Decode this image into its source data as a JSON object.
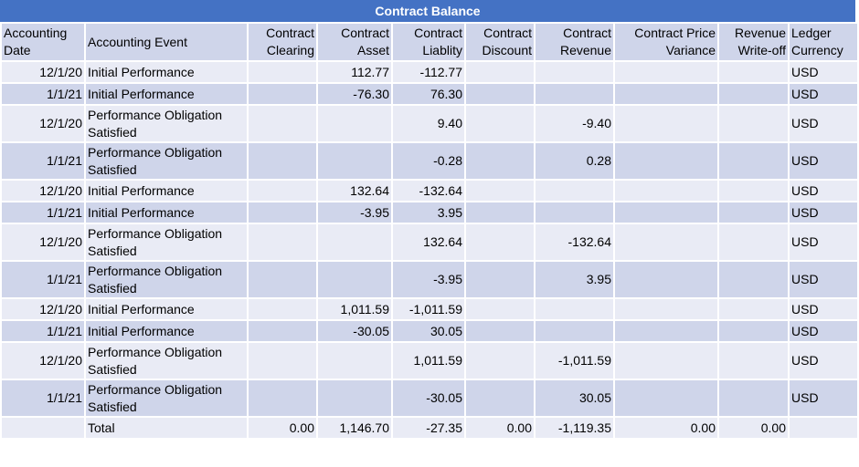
{
  "title": "Contract Balance",
  "headers": [
    "Accounting Date",
    "Accounting Event",
    "Contract Clearing",
    "Contract Asset",
    "Contract Liablity",
    "Contract Discount",
    "Contract Revenue",
    "Contract Price Variance",
    "Revenue Write-off",
    "Ledger Currency"
  ],
  "rows": [
    {
      "date": "12/1/20",
      "event": "Initial Performance",
      "clearing": "",
      "asset": "112.77",
      "liability": "-112.77",
      "discount": "",
      "revenue": "",
      "variance": "",
      "writeoff": "",
      "currency": "USD"
    },
    {
      "date": "1/1/21",
      "event": "Initial Performance",
      "clearing": "",
      "asset": "-76.30",
      "liability": "76.30",
      "discount": "",
      "revenue": "",
      "variance": "",
      "writeoff": "",
      "currency": "USD"
    },
    {
      "date": "12/1/20",
      "event": "Performance Obligation Satisfied",
      "clearing": "",
      "asset": "",
      "liability": "9.40",
      "discount": "",
      "revenue": "-9.40",
      "variance": "",
      "writeoff": "",
      "currency": "USD"
    },
    {
      "date": "1/1/21",
      "event": "Performance Obligation Satisfied",
      "clearing": "",
      "asset": "",
      "liability": "-0.28",
      "discount": "",
      "revenue": "0.28",
      "variance": "",
      "writeoff": "",
      "currency": "USD"
    },
    {
      "date": "12/1/20",
      "event": "Initial Performance",
      "clearing": "",
      "asset": "132.64",
      "liability": "-132.64",
      "discount": "",
      "revenue": "",
      "variance": "",
      "writeoff": "",
      "currency": "USD"
    },
    {
      "date": "1/1/21",
      "event": "Initial Performance",
      "clearing": "",
      "asset": "-3.95",
      "liability": "3.95",
      "discount": "",
      "revenue": "",
      "variance": "",
      "writeoff": "",
      "currency": "USD"
    },
    {
      "date": "12/1/20",
      "event": "Performance Obligation Satisfied",
      "clearing": "",
      "asset": "",
      "liability": "132.64",
      "discount": "",
      "revenue": "-132.64",
      "variance": "",
      "writeoff": "",
      "currency": "USD"
    },
    {
      "date": "1/1/21",
      "event": "Performance Obligation Satisfied",
      "clearing": "",
      "asset": "",
      "liability": "-3.95",
      "discount": "",
      "revenue": "3.95",
      "variance": "",
      "writeoff": "",
      "currency": "USD"
    },
    {
      "date": "12/1/20",
      "event": "Initial Performance",
      "clearing": "",
      "asset": "1,011.59",
      "liability": "-1,011.59",
      "discount": "",
      "revenue": "",
      "variance": "",
      "writeoff": "",
      "currency": "USD"
    },
    {
      "date": "1/1/21",
      "event": "Initial Performance",
      "clearing": "",
      "asset": "-30.05",
      "liability": "30.05",
      "discount": "",
      "revenue": "",
      "variance": "",
      "writeoff": "",
      "currency": "USD"
    },
    {
      "date": "12/1/20",
      "event": "Performance Obligation Satisfied",
      "clearing": "",
      "asset": "",
      "liability": "1,011.59",
      "discount": "",
      "revenue": "-1,011.59",
      "variance": "",
      "writeoff": "",
      "currency": "USD"
    },
    {
      "date": "1/1/21",
      "event": "Performance Obligation Satisfied",
      "clearing": "",
      "asset": "",
      "liability": "-30.05",
      "discount": "",
      "revenue": "30.05",
      "variance": "",
      "writeoff": "",
      "currency": "USD"
    }
  ],
  "total": {
    "date": "",
    "event": "Total",
    "clearing": "0.00",
    "asset": "1,146.70",
    "liability": "-27.35",
    "discount": "0.00",
    "revenue": "-1,119.35",
    "variance": "0.00",
    "writeoff": "0.00",
    "currency": ""
  },
  "colors": {
    "title_bg": "#4472c4",
    "header_bg": "#cfd5ea",
    "row_light": "#e9ebf5",
    "row_dark": "#cfd5ea"
  }
}
